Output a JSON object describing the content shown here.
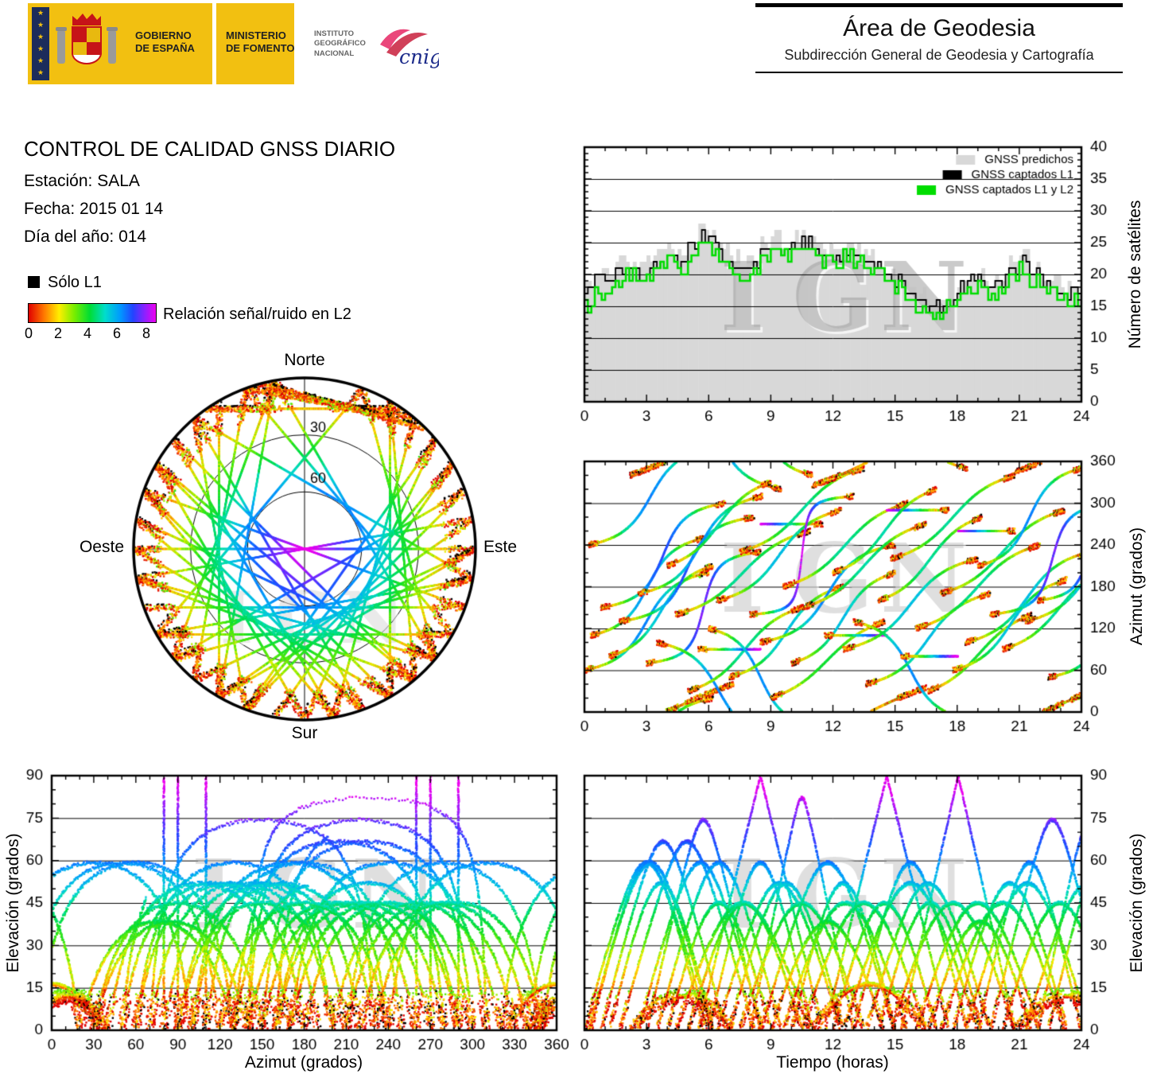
{
  "watermark": "IGN",
  "header": {
    "gobierno": "GOBIERNO\nDE ESPAÑA",
    "ministerio": "MINISTERIO\nDE FOMENTO",
    "instituto": "INSTITUTO\nGEOGRÁFICO\nNACIONAL",
    "cnig": "cnig",
    "area_title": "Área de Geodesia",
    "area_subtitle": "Subdirección General de Geodesia y Cartografía"
  },
  "report": {
    "title": "CONTROL DE CALIDAD GNSS DIARIO",
    "station": "Estación: SALA",
    "date": "Fecha: 2015 01 14",
    "doy": "Día del año: 014"
  },
  "legend": {
    "solo_l1": "Sólo L1",
    "snr_label": "Relación señal/ruido en L2",
    "snr_ticks": [
      "0",
      "2",
      "4",
      "6",
      "8"
    ]
  },
  "snr_palette": [
    "#e00000",
    "#ff7700",
    "#ffee00",
    "#77ee00",
    "#00dd33",
    "#00ddcc",
    "#0099ff",
    "#2244ff",
    "#8822ff",
    "#ee00ee"
  ],
  "satellite_passes_note": "approximate pass chords [start_hour, duration_h, horizon_entry_azimuth_deg, horizon_exit_azimuth_deg]",
  "satellite_passes": [
    [
      0,
      6,
      60,
      200
    ],
    [
      0.3,
      5.5,
      110,
      250
    ],
    [
      0.8,
      6,
      150,
      300
    ],
    [
      1.2,
      5,
      80,
      210
    ],
    [
      1.7,
      6.5,
      130,
      280
    ],
    [
      2.2,
      5,
      340,
      40
    ],
    [
      2.6,
      6,
      170,
      310
    ],
    [
      3,
      5.5,
      70,
      230
    ],
    [
      3.5,
      6,
      100,
      320
    ],
    [
      4,
      5,
      210,
      330
    ],
    [
      4.4,
      6.5,
      140,
      260
    ],
    [
      5,
      5.5,
      30,
      150
    ],
    [
      5.5,
      6,
      90,
      270
    ],
    [
      6,
      5,
      120,
      340
    ],
    [
      6.4,
      6,
      160,
      290
    ],
    [
      7,
      5.5,
      50,
      180
    ],
    [
      7.5,
      6,
      230,
      350
    ],
    [
      8,
      5,
      140,
      310
    ],
    [
      8.5,
      6.5,
      100,
      240
    ],
    [
      9,
      5.5,
      20,
      130
    ],
    [
      9.6,
      6,
      180,
      300
    ],
    [
      10,
      5,
      70,
      200
    ],
    [
      10.5,
      6,
      150,
      270
    ],
    [
      11,
      5.5,
      325,
      35
    ],
    [
      11.6,
      6,
      110,
      290
    ],
    [
      12,
      5,
      200,
      320
    ],
    [
      12.5,
      6.5,
      90,
      220
    ],
    [
      13,
      5.5,
      130,
      350
    ],
    [
      13.6,
      6,
      40,
      170
    ],
    [
      14.2,
      5,
      160,
      280
    ],
    [
      14.8,
      6,
      220,
      340
    ],
    [
      15.3,
      5.5,
      80,
      260
    ],
    [
      16,
      6,
      120,
      240
    ],
    [
      16.6,
      5,
      30,
      140
    ],
    [
      17.2,
      6,
      170,
      290
    ],
    [
      17.8,
      5.5,
      60,
      190
    ],
    [
      18.4,
      6,
      100,
      230
    ],
    [
      19,
      5,
      210,
      350
    ],
    [
      19.6,
      6,
      140,
      300
    ],
    [
      20.2,
      5.5,
      90,
      210
    ],
    [
      20.8,
      5,
      345,
      45
    ],
    [
      21.3,
      6,
      130,
      260
    ],
    [
      21.9,
      5,
      160,
      320
    ],
    [
      22.4,
      5.5,
      50,
      200
    ],
    [
      0.2,
      6,
      240,
      20
    ]
  ],
  "chart_data": [
    {
      "id": "sat_count",
      "type": "area+step",
      "title": "",
      "xlabel": "",
      "ylabel": "Número de satélites",
      "xlim": [
        0,
        24
      ],
      "ylim": [
        0,
        40
      ],
      "xticks": [
        0,
        3,
        6,
        9,
        12,
        15,
        18,
        21,
        24
      ],
      "yticks": [
        0,
        5,
        10,
        15,
        20,
        25,
        30,
        35,
        40
      ],
      "xminor": 1,
      "yminor": 1,
      "x_step_hours": 0.5,
      "grid": "horizontal",
      "legend_position": "top-right",
      "legend": [
        {
          "label": "GNSS predichos",
          "color": "#d8d8d8"
        },
        {
          "label": "GNSS captados L1",
          "color": "#000000"
        },
        {
          "label": "GNSS captados L1 y L2",
          "color": "#00dd00"
        }
      ],
      "series": [
        {
          "name": "GNSS predichos",
          "color": "#d8d8d8",
          "values": [
            19,
            20,
            21,
            22,
            22,
            21,
            22,
            23,
            24,
            23,
            25,
            27,
            26,
            24,
            23,
            22,
            23,
            25,
            26,
            25,
            26,
            26,
            25,
            24,
            24,
            25,
            24,
            23,
            22,
            21,
            20,
            18,
            17,
            16,
            16,
            17,
            19,
            20,
            20,
            19,
            20,
            22,
            23,
            21,
            20,
            19,
            18,
            18,
            19
          ]
        },
        {
          "name": "GNSS captados L1",
          "color": "#000000",
          "values": [
            18,
            19,
            20,
            21,
            21,
            20,
            21,
            22,
            23,
            22,
            24,
            26,
            25,
            23,
            22,
            21,
            22,
            24,
            25,
            24,
            25,
            25,
            24,
            23,
            23,
            24,
            23,
            22,
            21,
            20,
            19,
            17,
            16,
            15,
            15,
            16,
            18,
            19,
            19,
            18,
            19,
            21,
            22,
            20,
            19,
            18,
            17,
            17,
            18
          ]
        },
        {
          "name": "GNSS captados L1 y L2",
          "color": "#00dd00",
          "values": [
            15,
            17,
            18,
            19,
            20,
            19,
            20,
            21,
            22,
            21,
            23,
            25,
            24,
            22,
            21,
            20,
            21,
            23,
            24,
            23,
            24,
            24,
            23,
            22,
            22,
            23,
            22,
            21,
            20,
            19,
            18,
            16,
            15,
            14,
            14,
            15,
            17,
            18,
            18,
            17,
            18,
            20,
            21,
            19,
            18,
            17,
            16,
            16,
            17
          ]
        }
      ]
    },
    {
      "id": "az_time",
      "type": "scatter",
      "title": "",
      "xlabel": "",
      "ylabel": "Azimut (grados)",
      "xlim": [
        0,
        24
      ],
      "ylim": [
        0,
        360
      ],
      "xticks": [
        0,
        3,
        6,
        9,
        12,
        15,
        18,
        21,
        24
      ],
      "yticks": [
        0,
        60,
        120,
        180,
        240,
        300,
        360
      ],
      "xminor": 1,
      "yminor": 20,
      "grid": "horizontal",
      "note": "satellite azimuth vs time tracks, colored by L2 signal/noise"
    },
    {
      "id": "el_az",
      "type": "scatter",
      "title": "",
      "xlabel": "Azimut (grados)",
      "ylabel": "Elevación (grados)",
      "xlim": [
        0,
        360
      ],
      "ylim": [
        0,
        90
      ],
      "xticks": [
        0,
        30,
        60,
        90,
        120,
        150,
        180,
        210,
        240,
        270,
        300,
        330,
        360
      ],
      "yticks": [
        0,
        15,
        30,
        45,
        60,
        75,
        90
      ],
      "xminor": 10,
      "yminor": 5,
      "grid": "horizontal",
      "note": "satellite elevation vs azimuth tracks, colored by L2 signal/noise"
    },
    {
      "id": "el_time",
      "type": "scatter",
      "title": "",
      "xlabel": "Tiempo (horas)",
      "ylabel": "Elevación (grados)",
      "xlim": [
        0,
        24
      ],
      "ylim": [
        0,
        90
      ],
      "xticks": [
        0,
        3,
        6,
        9,
        12,
        15,
        18,
        21,
        24
      ],
      "yticks": [
        0,
        15,
        30,
        45,
        60,
        75,
        90
      ],
      "xminor": 1,
      "yminor": 5,
      "grid": "horizontal",
      "note": "satellite elevation vs time tracks, colored by L2 signal/noise"
    },
    {
      "id": "skyplot",
      "type": "polar-tracks",
      "cardinal": {
        "n": "Norte",
        "s": "Sur",
        "e": "Este",
        "w": "Oeste"
      },
      "ring_labels": [
        "30",
        "60"
      ],
      "elevation_rings": [
        30,
        60
      ],
      "note": "sky plot of satellite tracks, colored by L2 signal/noise; black = L1 only"
    }
  ]
}
